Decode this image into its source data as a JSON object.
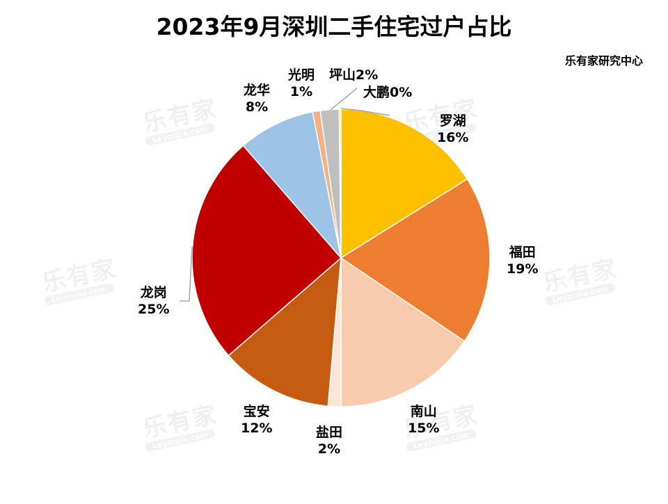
{
  "title": "2023年9月深圳二手住宅过户占比",
  "source": "乐有家研究中心",
  "watermark": {
    "cn": "乐有家",
    "en": "Leyoujia.com",
    "mark": "®"
  },
  "chart_data": {
    "type": "pie",
    "title": "2023年9月深圳二手住宅过户占比",
    "start_angle": "12 o'clock, clockwise",
    "categories": [
      "罗湖",
      "福田",
      "南山",
      "盐田",
      "宝安",
      "龙岗",
      "龙华",
      "光明",
      "坪山",
      "大鹏"
    ],
    "values": [
      16,
      19,
      15,
      2,
      12,
      25,
      8,
      1,
      2,
      0
    ],
    "value_unit": "%",
    "labels": [
      "罗湖\n16%",
      "福田\n19%",
      "南山\n15%",
      "盐田\n2%",
      "宝安\n12%",
      "龙岗\n25%",
      "龙华\n8%",
      "光明\n1%",
      "坪山2%",
      "大鹏0%"
    ],
    "colors": [
      "#FFC000",
      "#ED7D31",
      "#F8CBAD",
      "#FBE5D6",
      "#C55A11",
      "#C00000",
      "#9DC3E6",
      "#F4B183",
      "#BFBFBF",
      "#FFD966"
    ],
    "legend": "none (data labels on slices)"
  },
  "labels": {
    "luohu": {
      "name": "罗湖",
      "pct": "16%"
    },
    "futian": {
      "name": "福田",
      "pct": "19%"
    },
    "nanshan": {
      "name": "南山",
      "pct": "15%"
    },
    "yantian": {
      "name": "盐田",
      "pct": "2%"
    },
    "baoan": {
      "name": "宝安",
      "pct": "12%"
    },
    "longgang": {
      "name": "龙岗",
      "pct": "25%"
    },
    "longhua": {
      "name": "龙华",
      "pct": "8%"
    },
    "guangming": {
      "name": "光明",
      "pct": "1%"
    },
    "pingshan": {
      "text": "坪山2%"
    },
    "dapeng": {
      "text": "大鹏0%"
    }
  }
}
